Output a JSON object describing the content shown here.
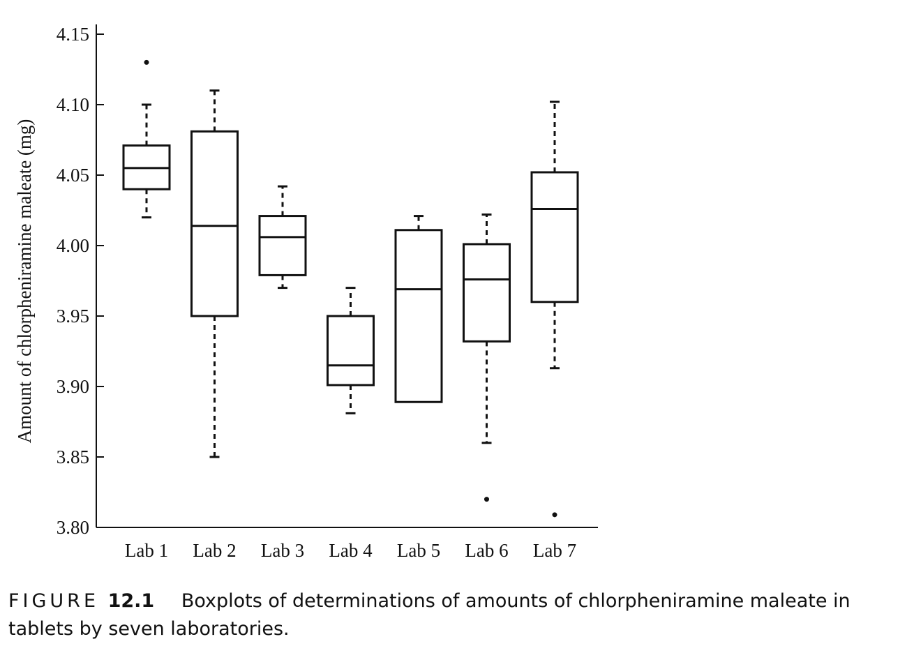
{
  "chart_data": {
    "type": "boxplot",
    "xlabel": "",
    "ylabel": "Amount of chlorpheniramine maleate (mg)",
    "ylim": [
      3.8,
      4.15
    ],
    "yticks": [
      "3.80",
      "3.85",
      "3.90",
      "3.95",
      "4.00",
      "4.05",
      "4.10",
      "4.15"
    ],
    "grid": false,
    "categories": [
      "Lab 1",
      "Lab 2",
      "Lab 3",
      "Lab 4",
      "Lab 5",
      "Lab 6",
      "Lab 7"
    ],
    "boxes": [
      {
        "label": "Lab 1",
        "whisker_low": 4.02,
        "q1": 4.04,
        "median": 4.055,
        "q3": 4.071,
        "whisker_high": 4.1,
        "outliers": [
          4.13
        ]
      },
      {
        "label": "Lab 2",
        "whisker_low": 3.85,
        "q1": 3.95,
        "median": 4.014,
        "q3": 4.081,
        "whisker_high": 4.11,
        "outliers": []
      },
      {
        "label": "Lab 3",
        "whisker_low": 3.97,
        "q1": 3.979,
        "median": 4.006,
        "q3": 4.021,
        "whisker_high": 4.042,
        "outliers": []
      },
      {
        "label": "Lab 4",
        "whisker_low": 3.881,
        "q1": 3.901,
        "median": 3.915,
        "q3": 3.95,
        "whisker_high": 3.97,
        "outliers": []
      },
      {
        "label": "Lab 5",
        "whisker_low": 3.889,
        "q1": 3.889,
        "median": 3.969,
        "q3": 4.011,
        "whisker_high": 4.021,
        "outliers": []
      },
      {
        "label": "Lab 6",
        "whisker_low": 3.86,
        "q1": 3.932,
        "median": 3.976,
        "q3": 4.001,
        "whisker_high": 4.022,
        "outliers": [
          3.82
        ]
      },
      {
        "label": "Lab 7",
        "whisker_low": 3.913,
        "q1": 3.96,
        "median": 4.026,
        "q3": 4.052,
        "whisker_high": 4.102,
        "outliers": [
          3.809
        ]
      }
    ]
  },
  "caption": {
    "prefix": "FIGURE",
    "number": "12.1",
    "text": "Boxplots of determinations of amounts of chlorpheniramine maleate in tablets by seven laboratories."
  }
}
